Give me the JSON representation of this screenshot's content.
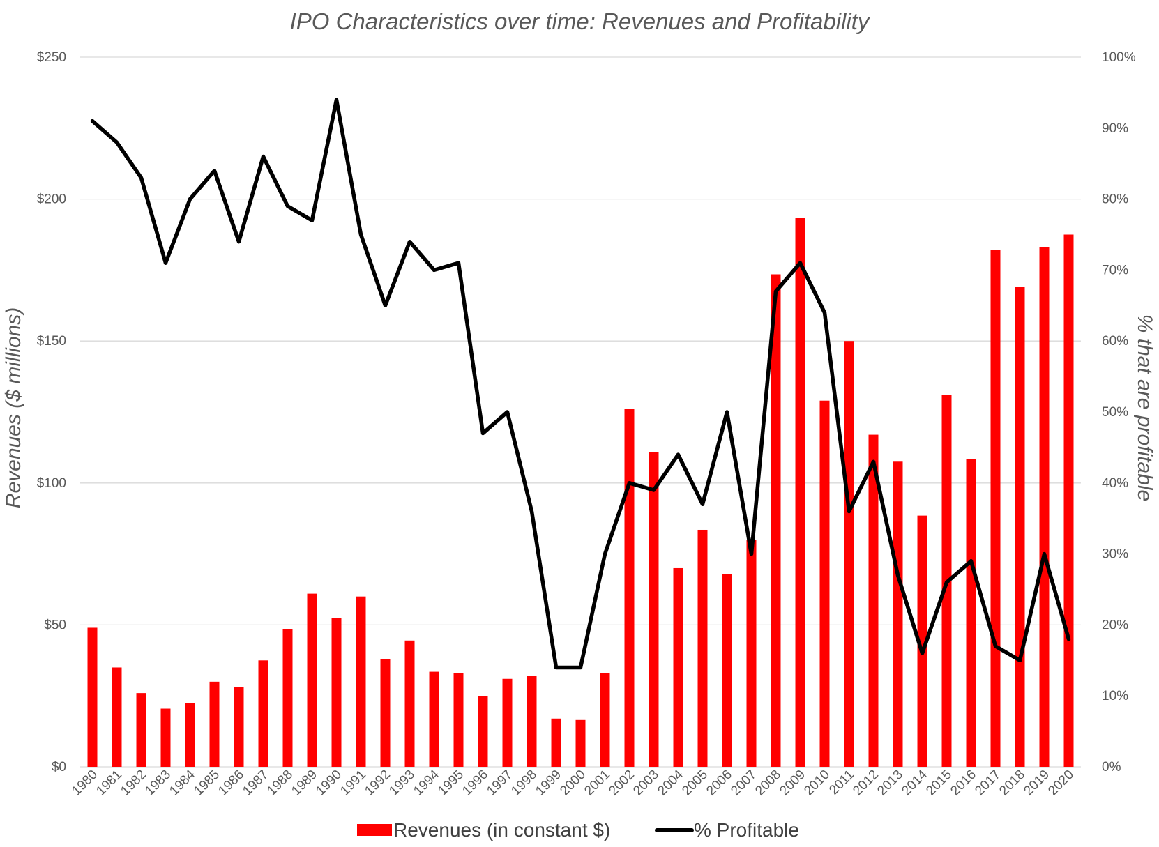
{
  "chart_data": {
    "type": "bar",
    "title": "IPO Characteristics over time: Revenues and Profitability",
    "ylabel": "Revenues ($ millions)",
    "y2label": "% that are profitable",
    "xlabel": "",
    "categories": [
      "1980",
      "1981",
      "1982",
      "1983",
      "1984",
      "1985",
      "1986",
      "1987",
      "1988",
      "1989",
      "1990",
      "1991",
      "1992",
      "1993",
      "1994",
      "1995",
      "1996",
      "1997",
      "1998",
      "1999",
      "2000",
      "2001",
      "2002",
      "2003",
      "2004",
      "2005",
      "2006",
      "2007",
      "2008",
      "2009",
      "2010",
      "2011",
      "2012",
      "2013",
      "2014",
      "2015",
      "2016",
      "2017",
      "2018",
      "2019",
      "2020"
    ],
    "series": [
      {
        "name": "Revenues (in constant $)",
        "type": "bar",
        "axis": "left",
        "color": "#ff0000",
        "values": [
          49,
          35,
          26,
          20.5,
          22.5,
          30,
          28,
          37.5,
          48.5,
          61,
          52.5,
          60,
          38,
          44.5,
          33.5,
          33,
          25,
          31,
          32,
          17,
          16.5,
          33,
          126,
          111,
          70,
          83.5,
          68,
          80,
          173.5,
          193.5,
          129,
          150,
          117,
          107.5,
          88.5,
          131,
          108.5,
          182,
          169,
          183,
          187.5
        ]
      },
      {
        "name": "% Profitable",
        "type": "line",
        "axis": "right",
        "color": "#000000",
        "values": [
          91,
          88,
          83,
          71,
          80,
          84,
          74,
          86,
          79,
          77,
          94,
          75,
          65,
          74,
          70,
          71,
          47,
          50,
          36,
          14,
          14,
          30,
          40,
          39,
          44,
          37,
          50,
          30,
          67,
          71,
          64,
          36,
          43,
          27,
          16,
          26,
          29,
          17,
          15,
          30,
          18
        ]
      }
    ],
    "ylim": [
      0,
      250
    ],
    "yticks": [
      "$0",
      "$50",
      "$100",
      "$150",
      "$200",
      "$250"
    ],
    "y2lim": [
      0,
      100
    ],
    "y2ticks": [
      "0%",
      "10%",
      "20%",
      "30%",
      "40%",
      "50%",
      "60%",
      "70%",
      "80%",
      "90%",
      "100%"
    ],
    "grid": true,
    "legend": "bottom"
  }
}
